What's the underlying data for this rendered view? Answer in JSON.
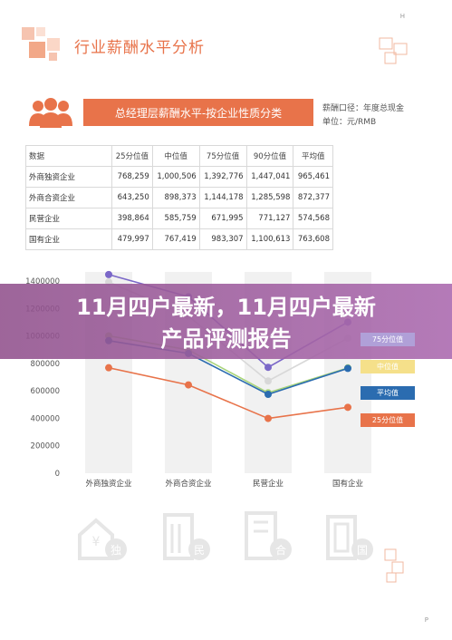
{
  "header": {
    "title": "行业薪酬水平分析",
    "corner_mark": "H",
    "page_mark": "P"
  },
  "banner": {
    "title": "总经理层薪酬水平-按企业性质分类",
    "salary_basis": "薪酬口径：年度总现金",
    "unit": "单位：元/RMB"
  },
  "table": {
    "headers": [
      "数据",
      "25分位值",
      "中位值",
      "75分位值",
      "90分位值",
      "平均值"
    ],
    "rows": [
      [
        "外商独资企业",
        "768,259",
        "1,000,506",
        "1,392,776",
        "1,447,041",
        "965,461"
      ],
      [
        "外商合资企业",
        "643,250",
        "898,373",
        "1,144,178",
        "1,285,598",
        "872,377"
      ],
      [
        "民营企业",
        "398,864",
        "585,759",
        "671,995",
        "771,127",
        "574,568"
      ],
      [
        "国有企业",
        "479,997",
        "767,419",
        "983,307",
        "1,100,613",
        "763,608"
      ]
    ]
  },
  "overlay": {
    "line1": "11月四户最新，11月四户最新",
    "line2": "产品评测报告"
  },
  "chart_data": {
    "type": "line",
    "categories": [
      "外商独资企业",
      "外商合资企业",
      "民营企业",
      "国有企业"
    ],
    "series": [
      {
        "name": "75分位值",
        "values": [
          1392776,
          1144178,
          671995,
          983307
        ],
        "color": "#d8d8d8"
      },
      {
        "name": "90分位值",
        "values": [
          1447041,
          1285598,
          771127,
          1100613
        ],
        "color": "#7b68c8"
      },
      {
        "name": "中位值",
        "values": [
          1000506,
          898373,
          585759,
          767419
        ],
        "color": "#a8d47a"
      },
      {
        "name": "平均值",
        "values": [
          965461,
          872377,
          574568,
          763608
        ],
        "color": "#2b6cb0"
      },
      {
        "name": "25分位值",
        "values": [
          768259,
          643250,
          398864,
          479997
        ],
        "color": "#e8734a"
      }
    ],
    "yticks": [
      "1400000",
      "1200000",
      "1000000",
      "800000",
      "600000",
      "400000",
      "200000",
      "0"
    ],
    "ylim": [
      0,
      1400000
    ],
    "legend_visible": [
      {
        "label": "75分位值",
        "color": "#b0a0d8"
      },
      {
        "label": "中位值",
        "color": "#f5e08a"
      },
      {
        "label": "平均值",
        "color": "#2b6cb0"
      },
      {
        "label": "25分位值",
        "color": "#e8734a"
      }
    ]
  },
  "bottom_icons": [
    {
      "glyph": "独",
      "color": "#e6e6e6"
    },
    {
      "glyph": "民",
      "color": "#e6e6e6"
    },
    {
      "glyph": "合",
      "color": "#e6e6e6"
    },
    {
      "glyph": "国",
      "color": "#e6e6e6"
    }
  ]
}
